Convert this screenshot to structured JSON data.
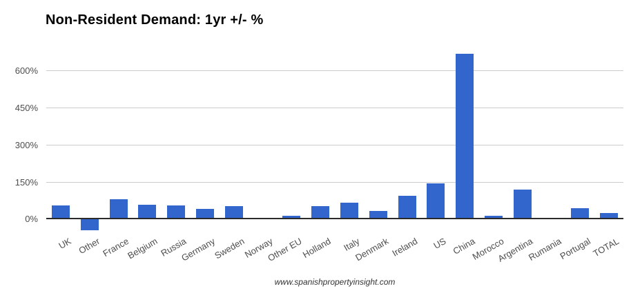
{
  "chart_data": {
    "type": "bar",
    "title": "Non-Resident Demand: 1yr +/- %",
    "categories": [
      "UK",
      "Other",
      "France",
      "Belgium",
      "Russia",
      "Germany",
      "Sweden",
      "Norway",
      "Other EU",
      "Holland",
      "Italy",
      "Denmark",
      "Ireland",
      "US",
      "China",
      "Morocco",
      "Argentina",
      "Rumania",
      "Portugal",
      "TOTAL"
    ],
    "values": [
      55,
      -47,
      80,
      58,
      54,
      39,
      52,
      0,
      13,
      52,
      66,
      33,
      93,
      143,
      667,
      13,
      117,
      0,
      43,
      22
    ],
    "xlabel": "",
    "ylabel": "",
    "ylim": [
      -55,
      690
    ],
    "yticks": [
      {
        "value": 0,
        "label": "0%"
      },
      {
        "value": 150,
        "label": "150%"
      },
      {
        "value": 300,
        "label": "300%"
      },
      {
        "value": 450,
        "label": "450%"
      },
      {
        "value": 600,
        "label": "600%"
      }
    ],
    "grid": true,
    "legend": "none",
    "colors": {
      "bar": "#3366cc",
      "gridline": "#cccccc",
      "zero_axis": "#2a2a2a",
      "axis_text": "#4d4d4d",
      "title_text": "#000000",
      "background": "#ffffff"
    }
  },
  "footer": {
    "url": "www.spanishpropertyinsight.com"
  }
}
